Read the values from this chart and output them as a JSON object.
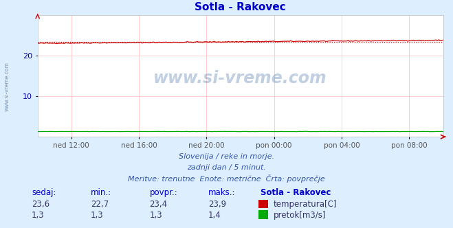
{
  "title": "Sotla - Rakovec",
  "bg_color": "#ddeeff",
  "plot_bg_color": "#ffffff",
  "grid_color": "#ffbbbb",
  "x_tick_labels": [
    "ned 12:00",
    "ned 16:00",
    "ned 20:00",
    "pon 00:00",
    "pon 04:00",
    "pon 08:00"
  ],
  "x_tick_positions": [
    0.0833,
    0.25,
    0.4167,
    0.5833,
    0.75,
    0.9167
  ],
  "ylim": [
    0,
    30
  ],
  "yticks": [
    10,
    20
  ],
  "temp_min": 22.7,
  "temp_max": 23.9,
  "temp_avg": 23.4,
  "temp_current": 23.6,
  "flow_min": 1.3,
  "flow_max": 1.4,
  "flow_avg": 1.3,
  "flow_current": 1.3,
  "temp_color": "#cc0000",
  "flow_color": "#00aa00",
  "subtitle1": "Slovenija / reke in morje.",
  "subtitle2": "zadnji dan / 5 minut.",
  "subtitle3": "Meritve: trenutne  Enote: metrične  Črta: povprečje",
  "legend_title": "Sotla - Rakovec",
  "label_temp": "temperatura[C]",
  "label_flow": "pretok[m3/s]",
  "col_sedaj": "sedaj:",
  "col_min": "min.:",
  "col_povpr": "povpr.:",
  "col_maks": "maks.:",
  "watermark": "www.si-vreme.com",
  "left_label": "www.si-vreme.com",
  "n_points": 288,
  "arrow_color": "#cc0000",
  "text_color_blue": "#3355aa",
  "text_color_header": "#0000cc",
  "text_color_val": "#333366",
  "tick_color": "#555555",
  "ytick_color": "#0000aa"
}
